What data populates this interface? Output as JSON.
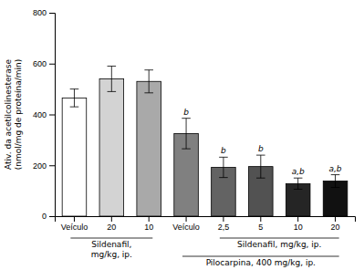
{
  "chart_data": {
    "type": "bar",
    "categories": [
      "Veículo",
      "20",
      "10",
      "Veículo",
      "2,5",
      "5",
      "10",
      "20"
    ],
    "values": [
      465,
      540,
      530,
      325,
      192,
      195,
      128,
      138
    ],
    "errors": [
      35,
      50,
      45,
      60,
      40,
      45,
      22,
      25
    ],
    "colors": [
      "#ffffff",
      "#d3d3d3",
      "#a9a9a9",
      "#808080",
      "#636363",
      "#525252",
      "#252525",
      "#111111"
    ],
    "ylabel": [
      "Ativ. da acetilcolinesterase",
      "(nmol/mg de proteína/min)"
    ],
    "ylim": [
      0,
      800
    ],
    "yticks": [
      0,
      200,
      400,
      600,
      800
    ],
    "grid": false,
    "annotations": [
      {
        "text": "b",
        "index": 3
      },
      {
        "text": "b",
        "index": 4
      },
      {
        "text": "b",
        "index": 5
      },
      {
        "text": "a,b",
        "index": 6
      },
      {
        "text": "a,b",
        "index": 7
      },
      {
        "text": [
          "Sildenafil,",
          "mg/kg, ip."
        ],
        "from": 0,
        "to": 2
      },
      {
        "text": [
          "Sildenafil, mg/kg, ip."
        ],
        "from": 4,
        "to": 7
      },
      {
        "text": [
          "Pilocarpina, 400 mg/kg, ip."
        ],
        "from": 3,
        "to": 7
      }
    ]
  }
}
